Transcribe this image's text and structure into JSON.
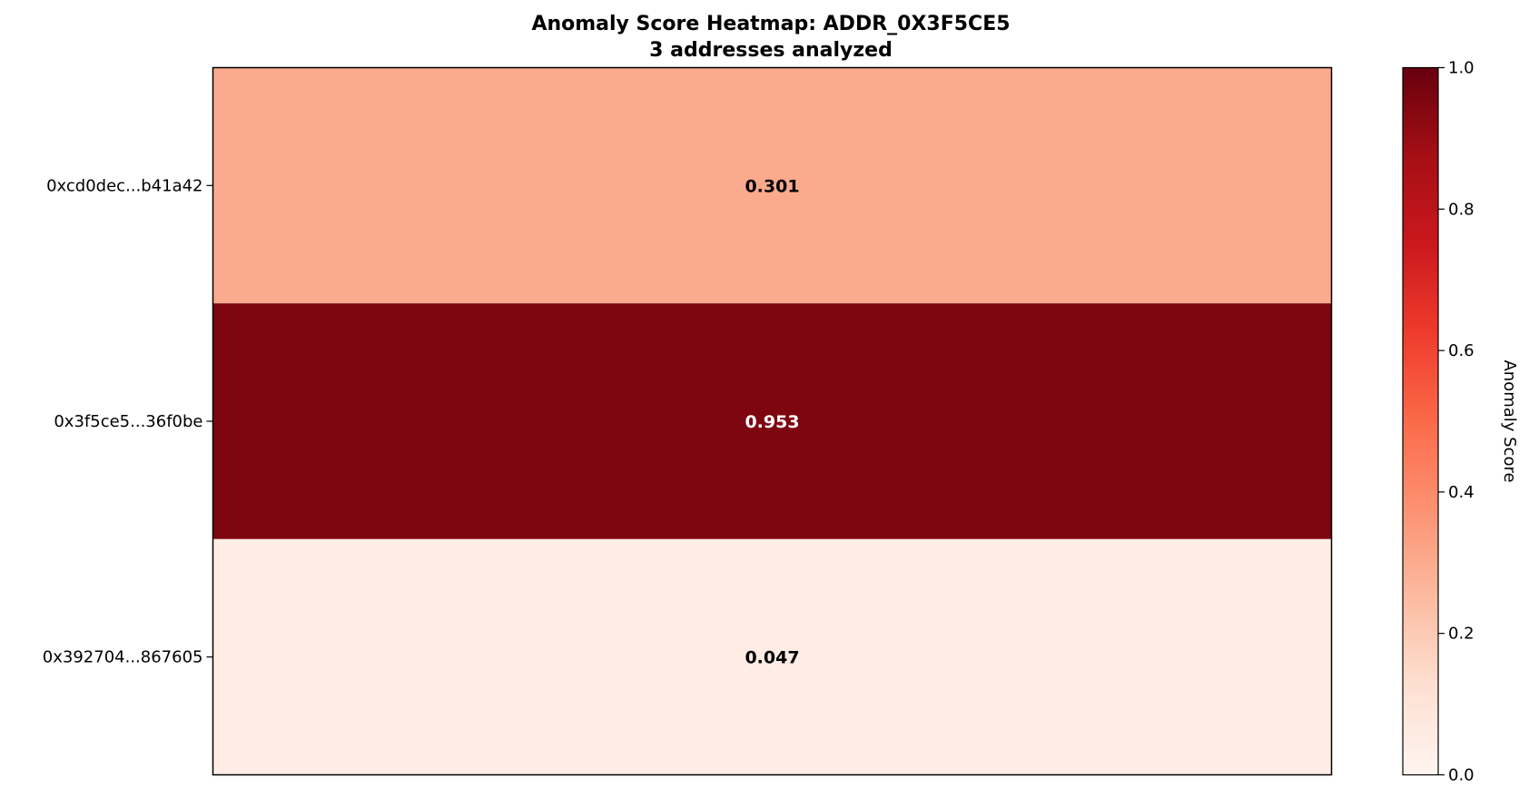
{
  "chart_data": {
    "type": "heatmap",
    "title": "Anomaly Score Heatmap: ADDR_0X3F5CE5",
    "subtitle": "3 addresses analyzed",
    "rows": [
      "0xcd0dec...b41a42",
      "0x3f5ce5...36f0be",
      "0x392704...867605"
    ],
    "values": [
      0.301,
      0.953,
      0.047
    ],
    "value_labels": [
      "0.301",
      "0.953",
      "0.047"
    ],
    "colorbar": {
      "label": "Anomaly Score",
      "range": [
        0.0,
        1.0
      ],
      "ticks": [
        0.0,
        0.2,
        0.4,
        0.6,
        0.8,
        1.0
      ],
      "tick_labels": [
        "0.0",
        "0.2",
        "0.4",
        "0.6",
        "0.8",
        "1.0"
      ],
      "colormap": "Reds"
    }
  },
  "colors": {
    "colormap_stops": [
      "#fff5f0",
      "#fee0d2",
      "#fcbba1",
      "#fc9272",
      "#fb6a4a",
      "#ef3b2c",
      "#cb181d",
      "#a50f15",
      "#67000d"
    ]
  }
}
